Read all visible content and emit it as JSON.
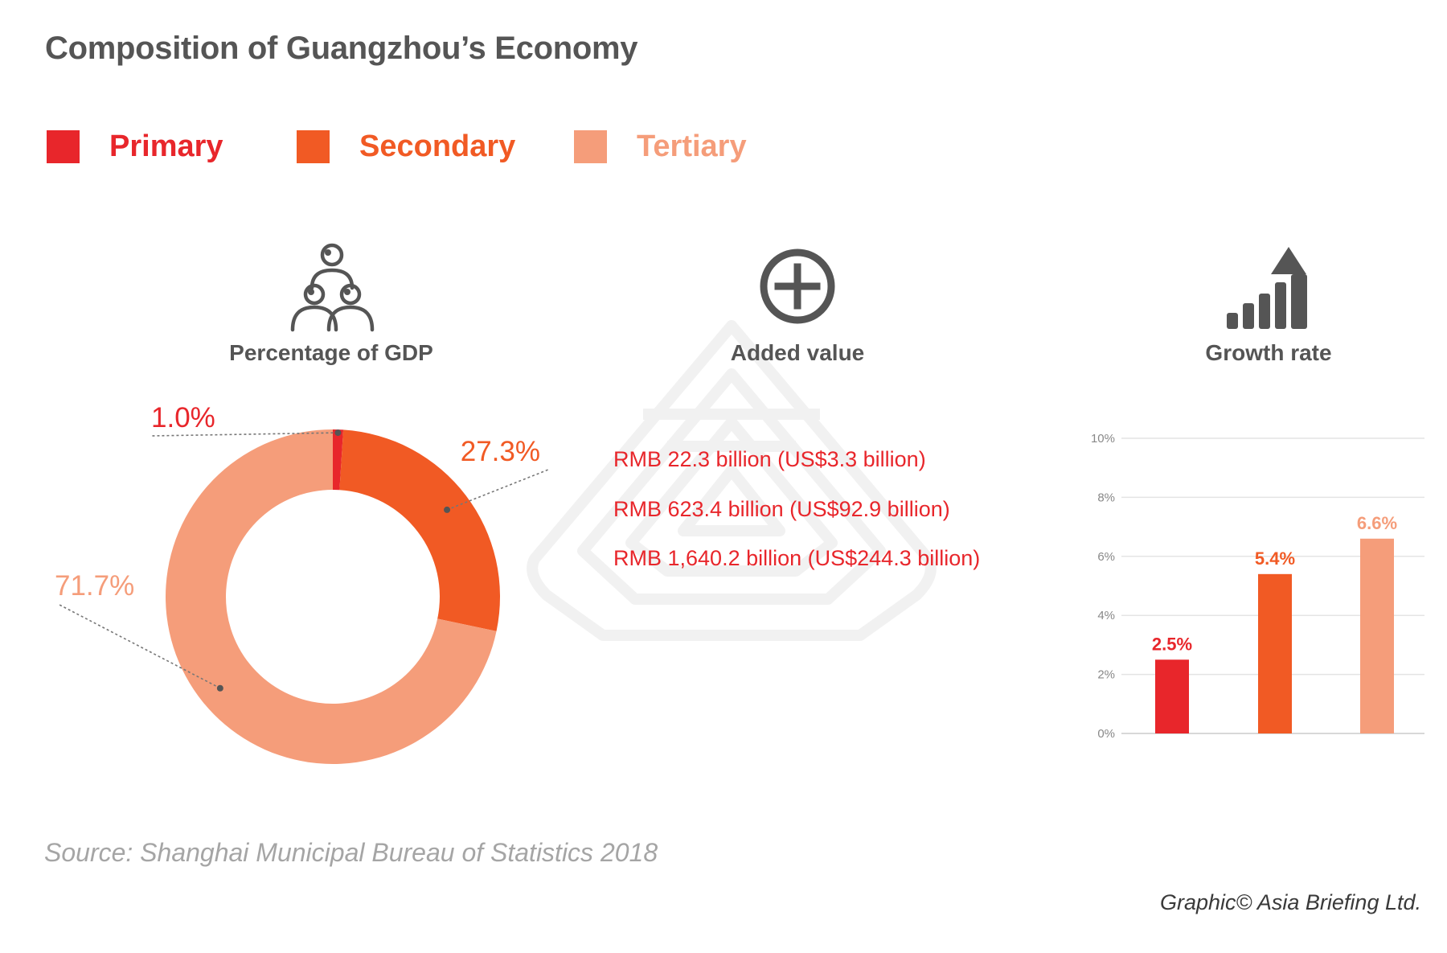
{
  "title": "Composition of Guangzhou’s Economy",
  "legend": [
    {
      "label": "Primary",
      "color": "#e8262b"
    },
    {
      "label": "Secondary",
      "color": "#f15a24"
    },
    {
      "label": "Tertiary",
      "color": "#f59d7a"
    }
  ],
  "sections": {
    "gdp_label": "Percentage of GDP",
    "added_label": "Added value",
    "growth_label": "Growth rate"
  },
  "icons": {
    "gdp": "people-group-icon",
    "added": "plus-circle-icon",
    "growth": "growth-bars-arrow-icon",
    "watermark": "asia-briefing-logo-watermark"
  },
  "added_values": [
    "RMB 22.3 billion (US$3.3 billion)",
    "RMB 623.4 billion (US$92.9 billion)",
    "RMB 1,640.2 billion (US$244.3 billion)"
  ],
  "source": "Source: Shanghai Municipal Bureau of Statistics 2018",
  "credit": "Graphic© Asia Briefing Ltd.",
  "chart_data": [
    {
      "type": "pie",
      "title": "Percentage of GDP",
      "labels": [
        "Primary",
        "Secondary",
        "Tertiary"
      ],
      "values": [
        1.0,
        27.3,
        71.7
      ],
      "value_labels": [
        "1.0%",
        "27.3%",
        "71.7%"
      ],
      "colors": [
        "#e8262b",
        "#f15a24",
        "#f59d7a"
      ]
    },
    {
      "type": "bar",
      "title": "Growth rate",
      "categories": [
        "Primary",
        "Secondary",
        "Tertiary"
      ],
      "values": [
        2.5,
        5.4,
        6.6
      ],
      "value_labels": [
        "2.5%",
        "5.4%",
        "6.6%"
      ],
      "colors": [
        "#e8262b",
        "#f15a24",
        "#f59d7a"
      ],
      "ylim": [
        0,
        10
      ],
      "yticks": [
        "0%",
        "2%",
        "4%",
        "6%",
        "8%",
        "10%"
      ],
      "grid": true
    }
  ]
}
